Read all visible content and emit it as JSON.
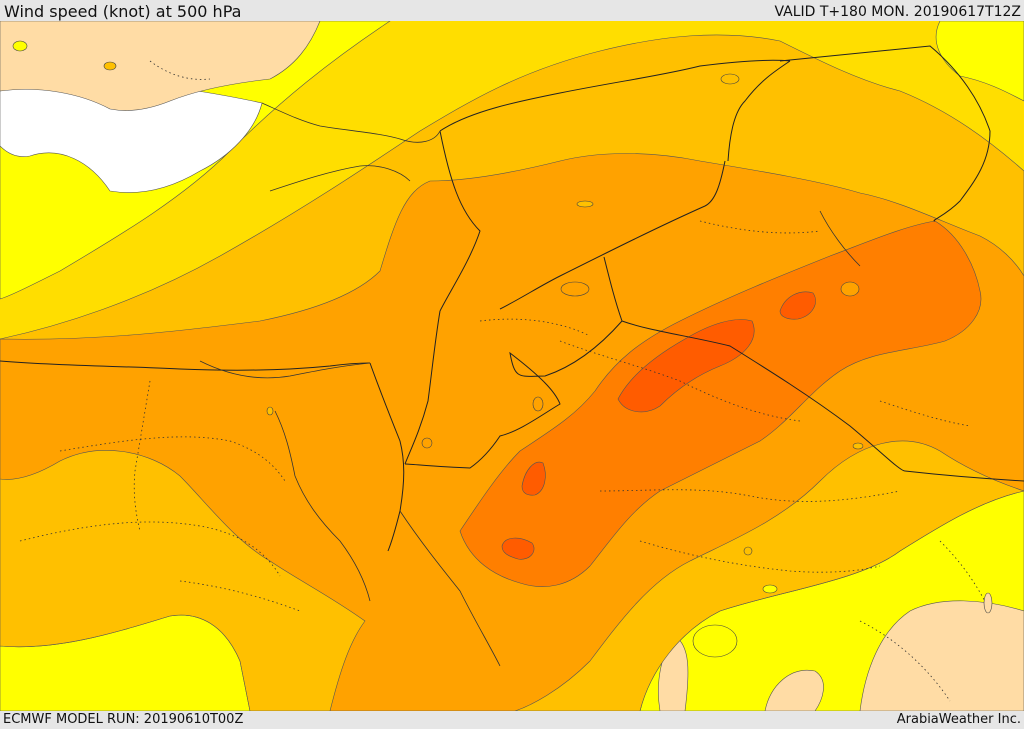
{
  "header": {
    "title": "Wind speed (knot) at 500 hPa",
    "valid": "VALID T+180 MON. 20190617T12Z"
  },
  "footer": {
    "model_run": "ECMWF MODEL RUN: 20190610T00Z",
    "credit": "ArabiaWeather Inc."
  },
  "map": {
    "field": "500 hPa wind speed",
    "colors": {
      "calm": "#ffffff",
      "very_light": "#ffdca5",
      "light": "#ffff00",
      "moderate": "#ffde00",
      "fresh": "#ffc000",
      "strong": "#ffa200",
      "very_strong": "#ff7f00",
      "max": "#ff5c00",
      "land_light": "#ffdca5"
    }
  }
}
